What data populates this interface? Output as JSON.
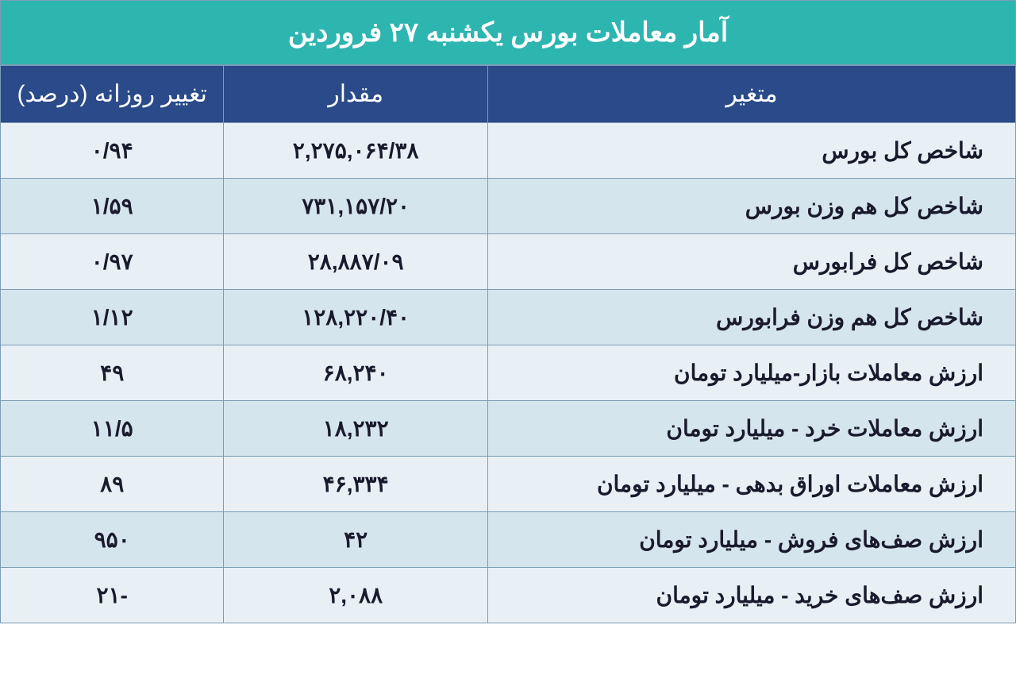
{
  "title": "آمار معاملات بورس یکشنبه ۲۷ فروردین",
  "columns": {
    "variable": "متغیر",
    "value": "مقدار",
    "change": "تغییر روزانه (درصد)"
  },
  "colors": {
    "title_bg": "#2db5b0",
    "header_bg": "#2a4a8a",
    "header_text": "#ffffff",
    "row_light": "#e8f0f5",
    "row_dark": "#d5e5ed",
    "border": "#7a9db5",
    "text": "#1a1a2e"
  },
  "layout": {
    "col_widths": [
      "52%",
      "26%",
      "22%"
    ],
    "title_fontsize": 34,
    "header_fontsize": 30,
    "cell_fontsize": 28
  },
  "rows": [
    {
      "variable": "شاخص کل بورس",
      "value": "۲,۲۷۵,۰۶۴/۳۸",
      "change": "۰/۹۴"
    },
    {
      "variable": "شاخص کل هم وزن بورس",
      "value": "۷۳۱,۱۵۷/۲۰",
      "change": "۱/۵۹"
    },
    {
      "variable": "شاخص کل فرابورس",
      "value": "۲۸,۸۸۷/۰۹",
      "change": "۰/۹۷"
    },
    {
      "variable": "شاخص کل هم وزن فرابورس",
      "value": "۱۲۸,۲۲۰/۴۰",
      "change": "۱/۱۲"
    },
    {
      "variable": "ارزش معاملات بازار-میلیارد تومان",
      "value": "۶۸,۲۴۰",
      "change": "۴۹"
    },
    {
      "variable": "ارزش معاملات خرد - میلیارد تومان",
      "value": "۱۸,۲۳۲",
      "change": "۱۱/۵"
    },
    {
      "variable": "ارزش معاملات اوراق بدهی - میلیارد تومان",
      "value": "۴۶,۳۳۴",
      "change": "۸۹"
    },
    {
      "variable": "ارزش صف‌های فروش - میلیارد تومان",
      "value": "۴۲",
      "change": "۹۵۰"
    },
    {
      "variable": "ارزش صف‌های خرید - میلیارد تومان",
      "value": "۲,۰۸۸",
      "change": "-۲۱"
    }
  ]
}
